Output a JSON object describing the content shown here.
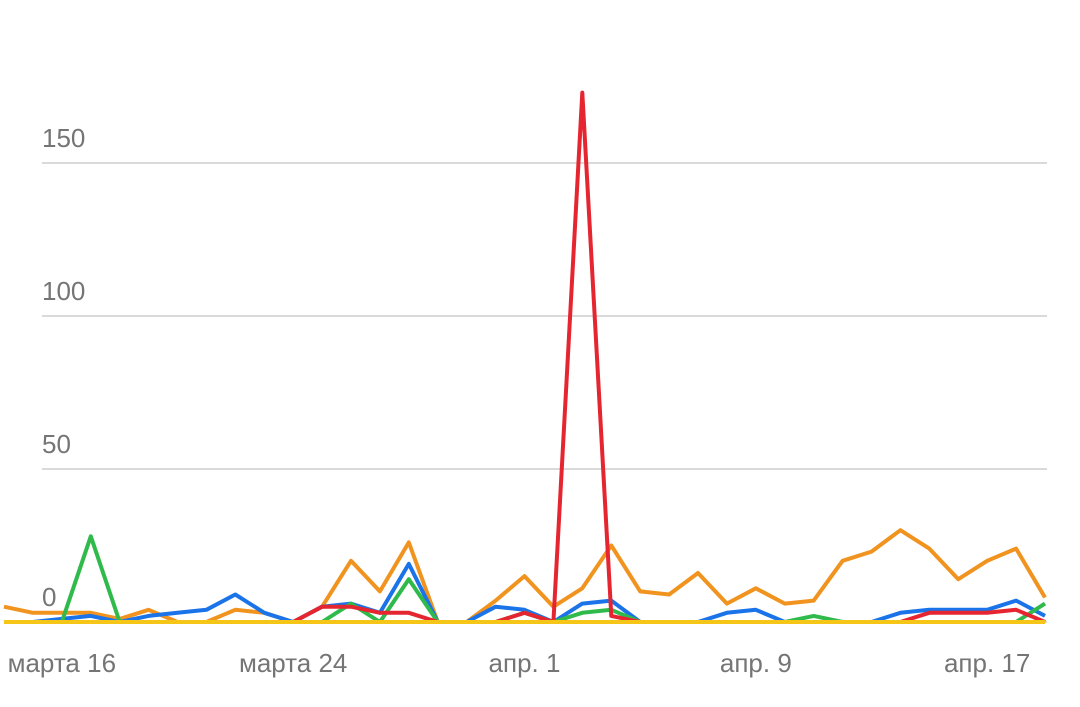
{
  "chart_data": {
    "type": "line",
    "categories": [
      null,
      null,
      "марта 16",
      null,
      null,
      null,
      null,
      null,
      null,
      null,
      "марта 24",
      null,
      null,
      null,
      null,
      null,
      null,
      null,
      "апр. 1",
      null,
      null,
      null,
      null,
      null,
      null,
      null,
      "апр. 9",
      null,
      null,
      null,
      null,
      null,
      null,
      null,
      "апр. 17",
      null,
      null
    ],
    "ylim": [
      0,
      200
    ],
    "yticks": [
      0,
      50,
      100,
      150
    ],
    "grid": true,
    "series": [
      {
        "color": "#f0931f",
        "values": [
          5,
          3,
          3,
          3,
          1,
          4,
          0,
          0,
          4,
          3,
          0,
          5,
          20,
          10,
          26,
          0,
          0,
          7,
          15,
          5,
          11,
          25,
          10,
          9,
          16,
          6,
          11,
          6,
          7,
          20,
          23,
          30,
          24,
          14,
          20,
          24,
          8
        ]
      },
      {
        "color": "#1a73e8",
        "values": [
          0,
          0,
          1,
          2,
          0,
          2,
          3,
          4,
          9,
          3,
          0,
          5,
          6,
          3,
          19,
          0,
          0,
          5,
          4,
          0,
          6,
          7,
          0,
          0,
          0,
          3,
          4,
          0,
          0,
          0,
          0,
          3,
          4,
          4,
          4,
          7,
          2
        ]
      },
      {
        "color": "#2fba4b",
        "values": [
          0,
          0,
          0,
          28,
          0,
          0,
          0,
          0,
          0,
          0,
          0,
          0,
          6,
          0,
          14,
          0,
          0,
          0,
          3,
          0,
          3,
          4,
          0,
          0,
          0,
          0,
          0,
          0,
          2,
          0,
          0,
          0,
          0,
          0,
          0,
          0,
          6
        ]
      },
      {
        "color": "#e52530",
        "values": [
          0,
          0,
          0,
          0,
          0,
          0,
          0,
          0,
          0,
          0,
          0,
          5,
          5,
          3,
          3,
          0,
          0,
          0,
          3,
          0,
          173,
          2,
          0,
          0,
          0,
          0,
          0,
          0,
          0,
          0,
          0,
          0,
          3,
          3,
          3,
          4,
          0
        ]
      },
      {
        "color": "#f5c518",
        "values": [
          0,
          0,
          0,
          0,
          0,
          0,
          0,
          0,
          0,
          0,
          0,
          0,
          0,
          0,
          0,
          0,
          0,
          0,
          0,
          0,
          0,
          0,
          0,
          0,
          0,
          0,
          0,
          0,
          0,
          0,
          0,
          0,
          0,
          0,
          0,
          0,
          0
        ]
      }
    ]
  }
}
